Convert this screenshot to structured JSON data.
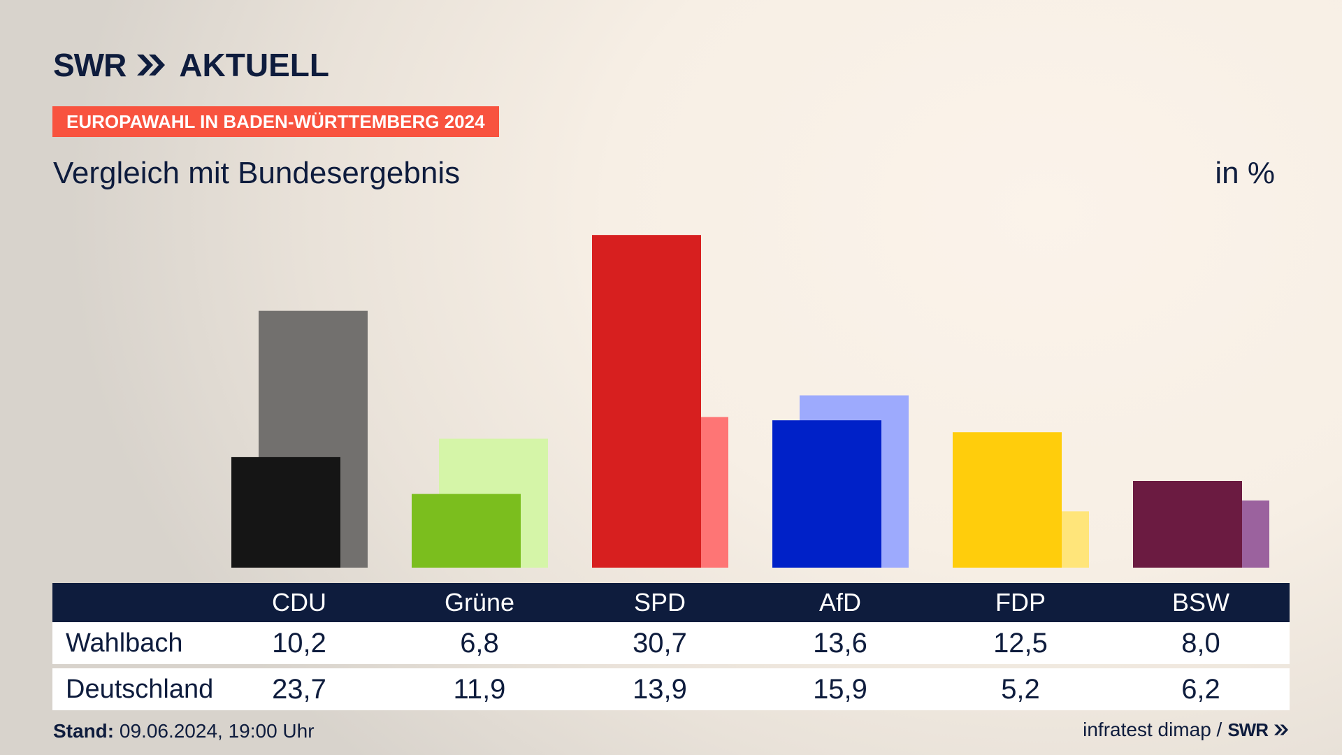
{
  "header": {
    "logo_left": "SWR",
    "logo_right": "AKTUELL",
    "badge": "EUROPAWAHL IN BADEN-WÜRTTEMBERG 2024",
    "subtitle": "Vergleich mit Bundesergebnis",
    "unit": "in %"
  },
  "table": {
    "row_labels": [
      "Wahlbach",
      "Deutschland"
    ]
  },
  "footer": {
    "stand_label": "Stand:",
    "stand_value": "09.06.2024, 19:00 Uhr",
    "source": "infratest dimap /",
    "source_logo": "SWR"
  },
  "colors": {
    "navy": "#0e1c3d",
    "badge": "#f8533f"
  },
  "chart_data": {
    "type": "bar",
    "title": "Vergleich mit Bundesergebnis",
    "unit": "in %",
    "categories": [
      "CDU",
      "Grüne",
      "SPD",
      "AfD",
      "FDP",
      "BSW"
    ],
    "series": [
      {
        "name": "Wahlbach",
        "values": [
          10.2,
          6.8,
          30.7,
          13.6,
          12.5,
          8.0
        ],
        "labels": [
          "10,2",
          "6,8",
          "30,7",
          "13,6",
          "12,5",
          "8,0"
        ],
        "colors": [
          "#151515",
          "#7bbe1e",
          "#d71f1f",
          "#0021c8",
          "#ffcd0c",
          "#6b1b41"
        ]
      },
      {
        "name": "Deutschland",
        "values": [
          23.7,
          11.9,
          13.9,
          15.9,
          5.2,
          6.2
        ],
        "labels": [
          "23,7",
          "11,9",
          "13,9",
          "15,9",
          "5,2",
          "6,2"
        ],
        "colors": [
          "#72706e",
          "#d5f5a8",
          "#fe7575",
          "#9daafd",
          "#ffe57a",
          "#9b629e"
        ]
      }
    ],
    "ylim": [
      0,
      33
    ],
    "grid": false,
    "legend": "none"
  }
}
